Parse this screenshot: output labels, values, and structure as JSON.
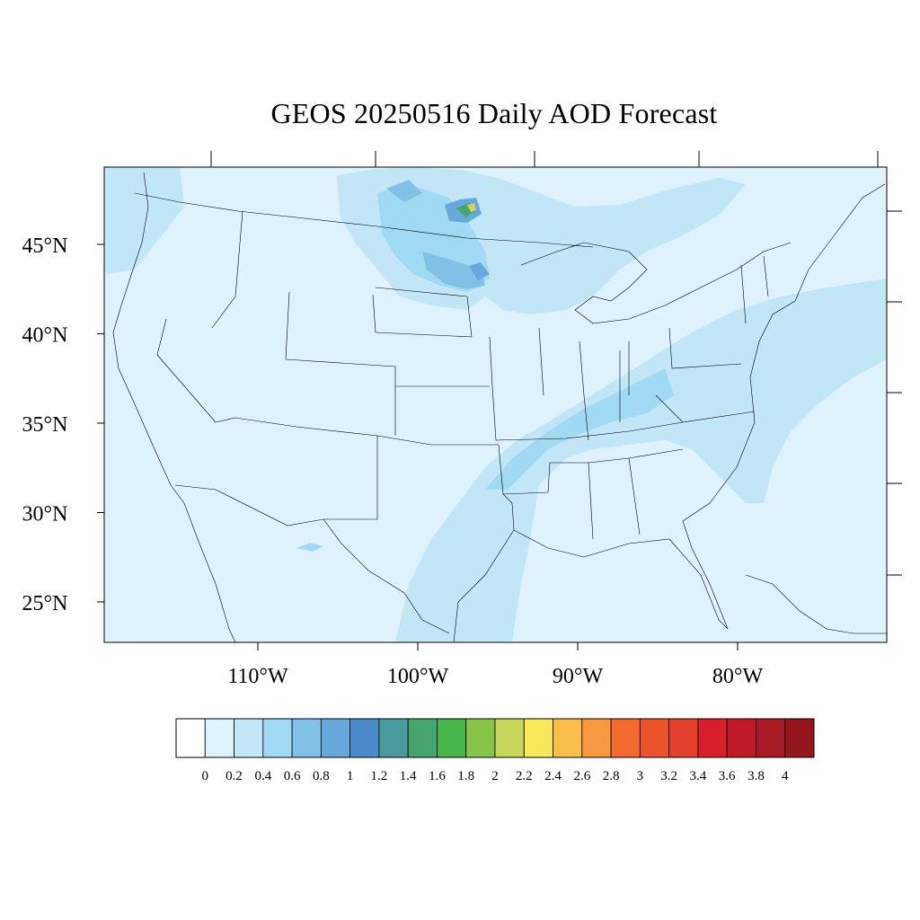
{
  "title": "GEOS 20250516 Daily AOD Forecast",
  "map": {
    "lat_labels": [
      {
        "text": "45°N",
        "value": 45
      },
      {
        "text": "40°N",
        "value": 40
      },
      {
        "text": "35°N",
        "value": 35
      },
      {
        "text": "30°N",
        "value": 30
      },
      {
        "text": "25°N",
        "value": 25
      }
    ],
    "lon_labels": [
      {
        "text": "110°W",
        "value": -110
      },
      {
        "text": "100°W",
        "value": -100
      },
      {
        "text": "90°W",
        "value": -90
      },
      {
        "text": "80°W",
        "value": -80
      }
    ],
    "colors": {
      "ocean_background": "#dff2fc",
      "boundary_line": "#000000"
    }
  },
  "colorbar": {
    "labels": [
      "0",
      "0.2",
      "0.4",
      "0.6",
      "0.8",
      "1",
      "1.2",
      "1.4",
      "1.6",
      "1.8",
      "2",
      "2.2",
      "2.4",
      "2.6",
      "2.8",
      "3",
      "3.2",
      "3.4",
      "3.6",
      "3.8",
      "4"
    ],
    "colors": [
      "#ffffff",
      "#e0f3fb",
      "#c1e7f7",
      "#9fd9f4",
      "#82c1e7",
      "#66a8dc",
      "#4a8cca",
      "#4a9b9b",
      "#46a56f",
      "#48b54a",
      "#86c54a",
      "#c7d75a",
      "#f8e85a",
      "#f9bf4a",
      "#f7983e",
      "#f3692e",
      "#ec542c",
      "#e2402b",
      "#d72029",
      "#bf1c26",
      "#a81a24",
      "#92161c"
    ]
  }
}
